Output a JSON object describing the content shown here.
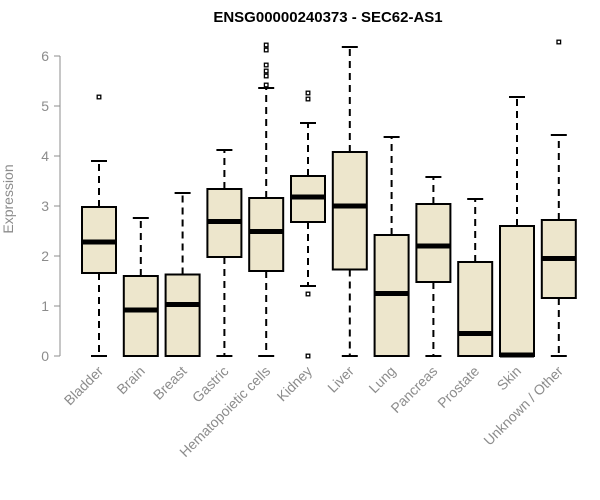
{
  "chart_data": {
    "type": "boxplot",
    "title": "ENSG00000240373 - SEC62-AS1",
    "xlabel": "",
    "ylabel": "Expression",
    "ylim": [
      0,
      6.3
    ],
    "yticks": [
      0,
      1,
      2,
      3,
      4,
      5,
      6
    ],
    "grid": false,
    "box_color": "#ede6cc",
    "categories": [
      "Bladder",
      "Brain",
      "Breast",
      "Gastric",
      "Hematopoietic cells",
      "Kidney",
      "Liver",
      "Lung",
      "Pancreas",
      "Prostate",
      "Skin",
      "Unknown / Other"
    ],
    "boxes": [
      {
        "label": "Bladder",
        "whislo": 0.0,
        "q1": 1.66,
        "med": 2.28,
        "q3": 2.98,
        "whishi": 3.9,
        "fliers": [
          5.18
        ]
      },
      {
        "label": "Brain",
        "whislo": 0.0,
        "q1": 0.0,
        "med": 0.92,
        "q3": 1.6,
        "whishi": 2.76,
        "fliers": []
      },
      {
        "label": "Breast",
        "whislo": 0.0,
        "q1": 0.0,
        "med": 1.03,
        "q3": 1.63,
        "whishi": 3.26,
        "fliers": []
      },
      {
        "label": "Gastric",
        "whislo": 0.0,
        "q1": 1.98,
        "med": 2.69,
        "q3": 3.34,
        "whishi": 4.12,
        "fliers": []
      },
      {
        "label": "Hematopoietic cells",
        "whislo": 0.0,
        "q1": 1.7,
        "med": 2.49,
        "q3": 3.16,
        "whishi": 5.36,
        "fliers": [
          5.42,
          5.6,
          5.7,
          5.82,
          6.12,
          6.22
        ]
      },
      {
        "label": "Kidney",
        "whislo": 1.4,
        "q1": 2.68,
        "med": 3.18,
        "q3": 3.6,
        "whishi": 4.66,
        "fliers": [
          5.14,
          5.26,
          1.24,
          0.0
        ]
      },
      {
        "label": "Liver",
        "whislo": 0.0,
        "q1": 1.73,
        "med": 3.0,
        "q3": 4.08,
        "whishi": 6.18,
        "fliers": []
      },
      {
        "label": "Lung",
        "whislo": 0.0,
        "q1": 0.0,
        "med": 1.25,
        "q3": 2.42,
        "whishi": 4.38,
        "fliers": []
      },
      {
        "label": "Pancreas",
        "whislo": 0.0,
        "q1": 1.48,
        "med": 2.2,
        "q3": 3.04,
        "whishi": 3.58,
        "fliers": []
      },
      {
        "label": "Prostate",
        "whislo": 0.0,
        "q1": 0.0,
        "med": 0.45,
        "q3": 1.88,
        "whishi": 3.14,
        "fliers": []
      },
      {
        "label": "Skin",
        "whislo": 0.0,
        "q1": 0.0,
        "med": 0.02,
        "q3": 2.6,
        "whishi": 5.18,
        "fliers": []
      },
      {
        "label": "Unknown / Other",
        "whislo": 0.0,
        "q1": 1.16,
        "med": 1.95,
        "q3": 2.72,
        "whishi": 4.42,
        "fliers": [
          6.28
        ]
      }
    ]
  }
}
